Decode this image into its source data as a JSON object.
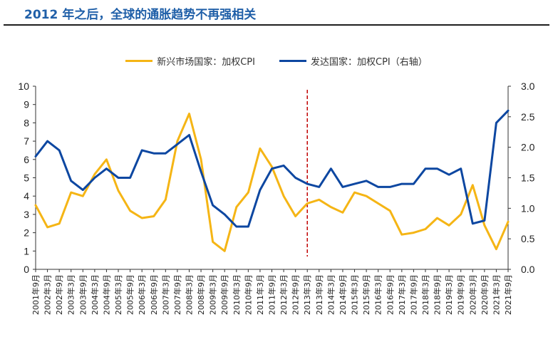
{
  "header": {
    "title": "2012 年之后，全球的通胀趋势不再强相关"
  },
  "chart_data": {
    "type": "line",
    "x_labels": [
      "2001年9月",
      "2002年3月",
      "2002年9月",
      "2003年3月",
      "2003年9月",
      "2004年3月",
      "2004年9月",
      "2005年3月",
      "2005年9月",
      "2006年3月",
      "2006年9月",
      "2007年3月",
      "2007年9月",
      "2008年3月",
      "2008年9月",
      "2009年3月",
      "2009年9月",
      "2010年3月",
      "2010年9月",
      "2011年3月",
      "2011年9月",
      "2012年3月",
      "2012年9月",
      "2013年3月",
      "2013年9月",
      "2014年3月",
      "2014年9月",
      "2015年3月",
      "2015年9月",
      "2016年3月",
      "2016年9月",
      "2017年3月",
      "2017年9月",
      "2018年3月",
      "2018年9月",
      "2019年3月",
      "2019年9月",
      "2020年3月",
      "2020年9月",
      "2021年3月",
      "2021年9月"
    ],
    "y_left": {
      "min": 0,
      "max": 10,
      "ticks": [
        "0",
        "1",
        "2",
        "3",
        "4",
        "5",
        "6",
        "7",
        "8",
        "9",
        "10"
      ]
    },
    "y_right": {
      "min": 0,
      "max": 3.0,
      "ticks": [
        "0.0",
        "0.5",
        "1.0",
        "1.5",
        "2.0",
        "2.5",
        "3.0"
      ]
    },
    "vline_at": "2013年3月",
    "grid": false,
    "legend_position": "top-center",
    "series": [
      {
        "name": "新兴市场国家：加权CPI",
        "axis": "left",
        "color": "#f5b515",
        "values": [
          3.5,
          2.3,
          2.5,
          4.2,
          4.0,
          5.2,
          6.0,
          4.3,
          3.2,
          2.8,
          2.9,
          3.8,
          7.0,
          8.5,
          6.0,
          1.5,
          1.0,
          3.4,
          4.2,
          6.6,
          5.6,
          4.0,
          2.9,
          3.6,
          3.8,
          3.4,
          3.1,
          4.2,
          4.0,
          3.6,
          3.2,
          1.9,
          2.0,
          2.2,
          2.8,
          2.4,
          3.0,
          4.6,
          2.4,
          1.1,
          2.6
        ]
      },
      {
        "name": "发达国家：加权CPI（右轴）",
        "axis": "right",
        "color": "#0d47a1",
        "values": [
          1.85,
          2.1,
          1.95,
          1.45,
          1.3,
          1.5,
          1.65,
          1.5,
          1.5,
          1.95,
          1.9,
          1.9,
          2.05,
          2.2,
          1.6,
          1.05,
          0.9,
          0.7,
          0.7,
          1.3,
          1.65,
          1.7,
          1.5,
          1.4,
          1.35,
          1.65,
          1.35,
          1.4,
          1.45,
          1.35,
          1.35,
          1.4,
          1.4,
          1.65,
          1.65,
          1.55,
          1.65,
          0.75,
          0.8,
          2.4,
          2.6
        ]
      }
    ]
  }
}
